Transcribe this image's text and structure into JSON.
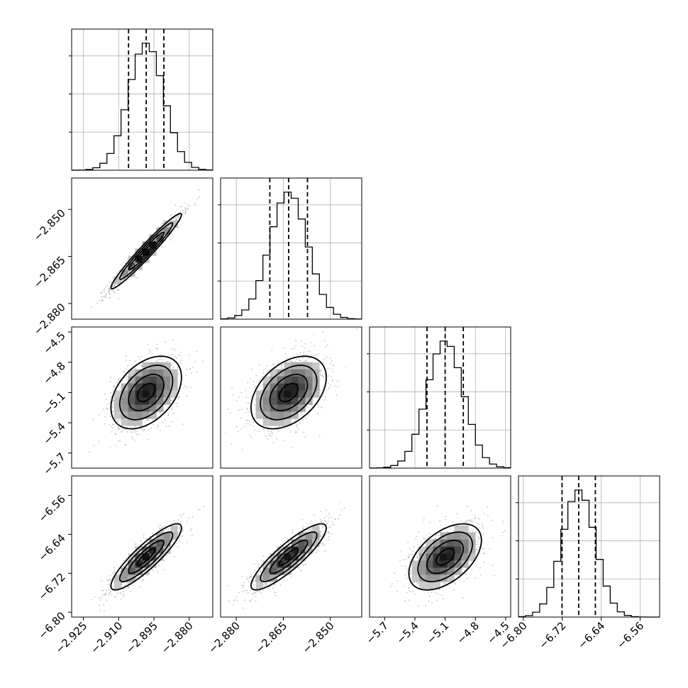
{
  "chart_data": {
    "type": "corner",
    "n_params": 4,
    "axes": [
      {
        "range": [
          -2.93,
          -2.87
        ],
        "ticks": [
          -2.925,
          -2.91,
          -2.895,
          -2.88
        ],
        "tick_labels": [
          "−2.925",
          "−2.910",
          "−2.895",
          "−2.880"
        ]
      },
      {
        "range": [
          -2.885,
          -2.84
        ],
        "ticks": [
          -2.88,
          -2.865,
          -2.85
        ],
        "tick_labels": [
          "−2.880",
          "−2.865",
          "−2.850"
        ]
      },
      {
        "range": [
          -5.85,
          -4.45
        ],
        "ticks": [
          -5.7,
          -5.4,
          -5.1,
          -4.8,
          -4.5
        ],
        "tick_labels": [
          "−5.7",
          "−5.4",
          "−5.1",
          "−4.8",
          "−4.5"
        ]
      },
      {
        "range": [
          -6.81,
          -6.52
        ],
        "ticks": [
          -6.8,
          -6.72,
          -6.64,
          -6.56
        ],
        "tick_labels": [
          "−6.80",
          "−6.72",
          "−6.64",
          "−6.56"
        ]
      }
    ],
    "diagonal": [
      {
        "mean": -2.8983,
        "std": 0.0075,
        "quantiles": [
          -2.9058,
          -2.8983,
          -2.8908
        ]
      },
      {
        "mean": -2.8633,
        "std": 0.006,
        "quantiles": [
          -2.8693,
          -2.8633,
          -2.8573
        ]
      },
      {
        "mean": -5.1,
        "std": 0.18,
        "quantiles": [
          -5.28,
          -5.1,
          -4.92
        ]
      },
      {
        "mean": -6.6863,
        "std": 0.034,
        "quantiles": [
          -6.7205,
          -6.6863,
          -6.652
        ]
      }
    ],
    "correlations": {
      "1-0": 0.97,
      "2-0": 0.42,
      "2-1": 0.42,
      "3-0": 0.88,
      "3-1": 0.87,
      "3-2": 0.5
    },
    "grid": true,
    "colors": {
      "line": "#000000",
      "grid": "#b0b0b0",
      "points": "#808080"
    }
  }
}
